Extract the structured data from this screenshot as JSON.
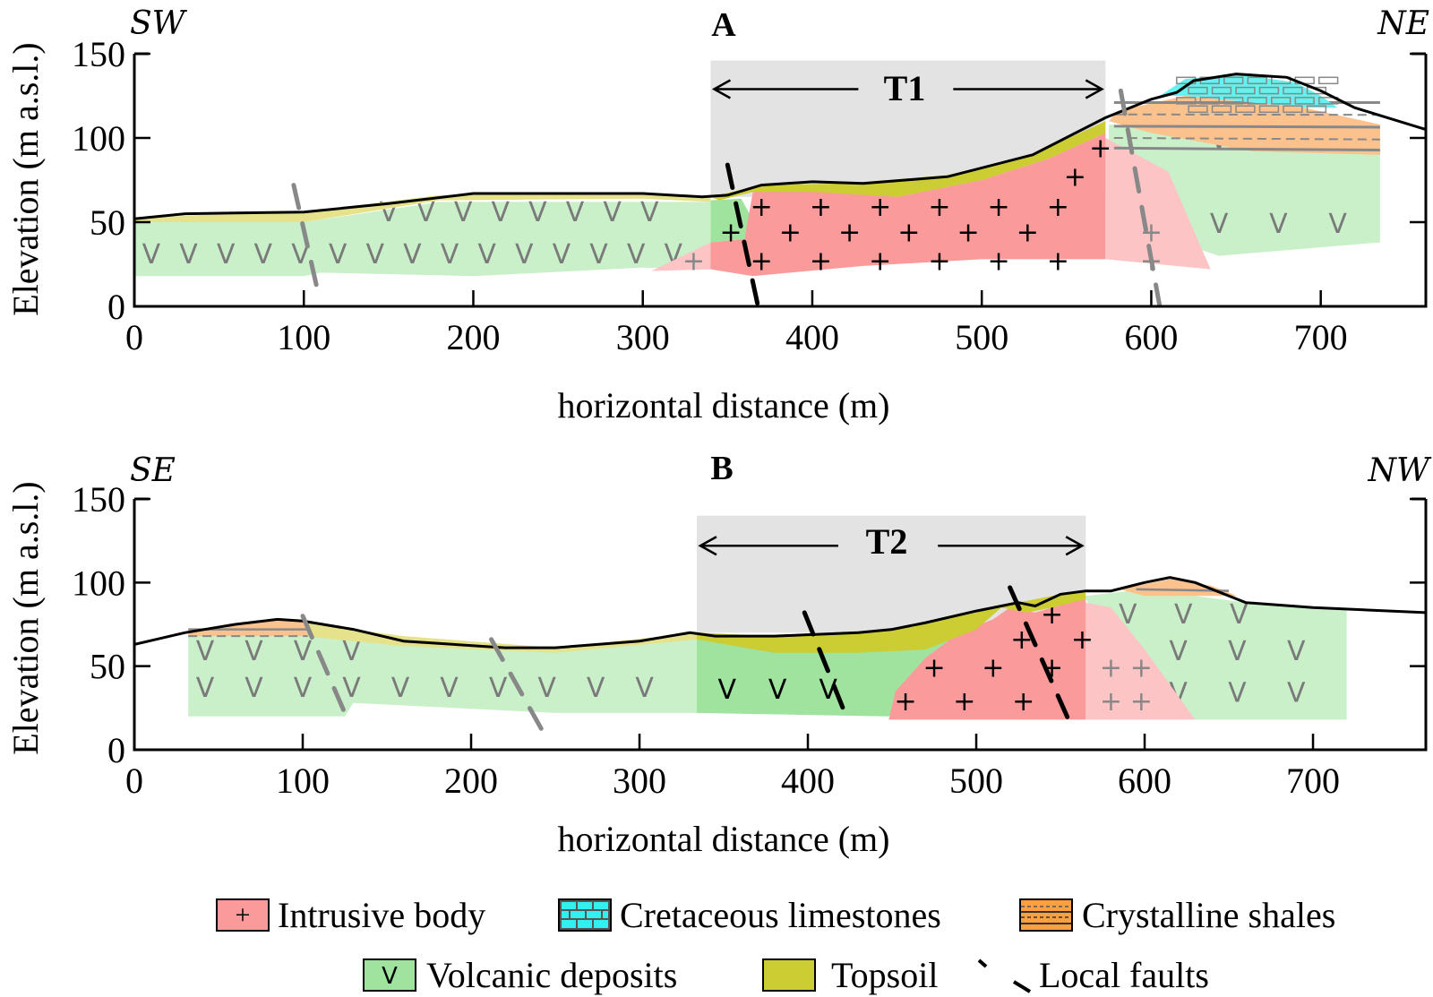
{
  "panels": [
    {
      "id": "A",
      "label": "A",
      "left_direction": "SW",
      "right_direction": "NE",
      "transect": {
        "label": "T1",
        "from_m": 340,
        "to_m": 573
      },
      "xlabel": "horizontal distance (m)",
      "ylabel": "Elevation (m a.s.l.)",
      "xlim": [
        0,
        762
      ],
      "ylim": [
        0,
        150
      ],
      "xticks": [
        "0",
        "100",
        "200",
        "300",
        "400",
        "500",
        "600",
        "700"
      ],
      "yticks": [
        "0",
        "50",
        "100",
        "150"
      ]
    },
    {
      "id": "B",
      "label": "B",
      "left_direction": "SE",
      "right_direction": "NW",
      "transect": {
        "label": "T2",
        "from_m": 334,
        "to_m": 565
      },
      "xlabel": "horizontal distance (m)",
      "ylabel": "Elevation (m a.s.l.)",
      "xlim": [
        0,
        767
      ],
      "ylim": [
        0,
        150
      ],
      "xticks": [
        "0",
        "100",
        "200",
        "300",
        "400",
        "500",
        "600",
        "700"
      ],
      "yticks": [
        "0",
        "50",
        "100",
        "150"
      ]
    }
  ],
  "legend": [
    {
      "key": "intrusive",
      "label": "Intrusive body",
      "color": "#fb9a9a",
      "symbol": "+"
    },
    {
      "key": "limestone",
      "label": "Cretaceous limestones",
      "color": "#33f0f0"
    },
    {
      "key": "shales",
      "label": "Crystalline shales",
      "color": "#f9a040"
    },
    {
      "key": "volcanic",
      "label": "Volcanic deposits",
      "color": "#9fe39f",
      "symbol": "V"
    },
    {
      "key": "topsoil",
      "label": "Topsoil",
      "color": "#cccc33"
    },
    {
      "key": "faults",
      "label": "Local faults"
    }
  ]
}
